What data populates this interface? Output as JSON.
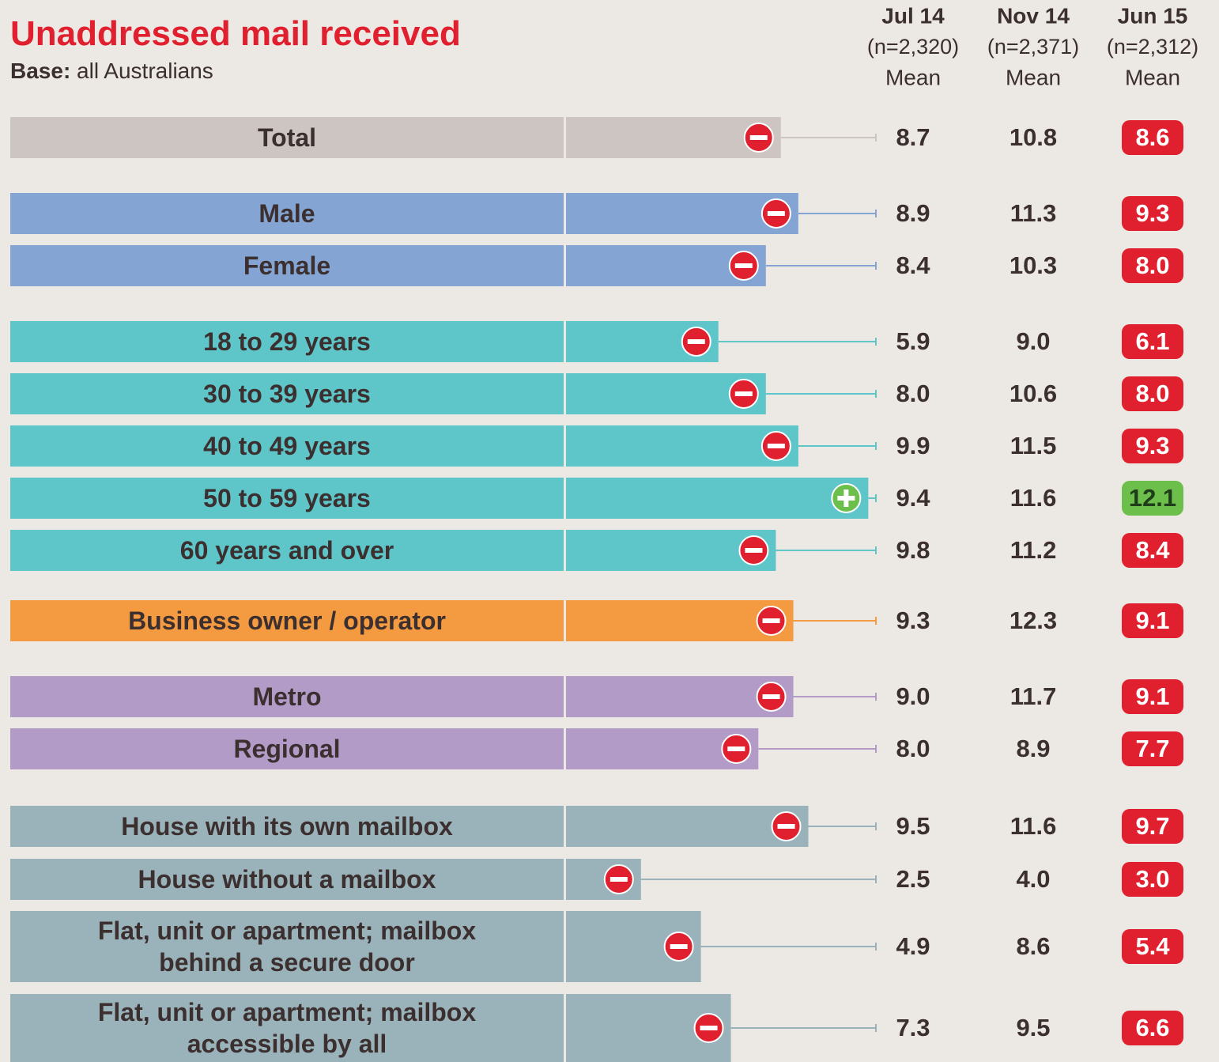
{
  "chart_data": {
    "type": "bar",
    "title": "Unaddressed mail received",
    "subtitle_label": "Base:",
    "subtitle": "all Australians",
    "categories": [
      "Total",
      "Male",
      "Female",
      "18 to 29 years",
      "30 to 39 years",
      "40 to 49 years",
      "50 to 59 years",
      "60 years and over",
      "Business owner / operator",
      "Metro",
      "Regional",
      "House with its own mailbox",
      "House without a mailbox",
      "Flat, unit or apartment; mailbox\nbehind a secure door",
      "Flat, unit or apartment; mailbox\naccessible by all"
    ],
    "category_colors": [
      "#cdc5c2",
      "#84a5d3",
      "#84a5d3",
      "#5ec5c9",
      "#5ec5c9",
      "#5ec5c9",
      "#5ec5c9",
      "#5ec5c9",
      "#f49a40",
      "#b39bc8",
      "#b39bc8",
      "#9ab2b9",
      "#9ab2b9",
      "#9ab2b9",
      "#9ab2b9"
    ],
    "significance": [
      "down",
      "down",
      "down",
      "down",
      "down",
      "down",
      "up",
      "down",
      "down",
      "down",
      "down",
      "down",
      "down",
      "down",
      "down"
    ],
    "significance_colors": {
      "down": "#e0202e",
      "up": "#6cbf4a"
    },
    "series": [
      {
        "name": "Jul 14",
        "sample": "(n=2,320)",
        "stat": "Mean",
        "values": [
          8.7,
          8.9,
          8.4,
          5.9,
          8.0,
          9.9,
          9.4,
          9.8,
          9.3,
          9.0,
          8.0,
          9.5,
          2.5,
          4.9,
          7.3
        ],
        "value_labels": [
          "8.7",
          "8.9",
          "8.4",
          "5.9",
          "8.0",
          "9.9",
          "9.4",
          "9.8",
          "9.3",
          "9.0",
          "8.0",
          "9.5",
          "2.5",
          "4.9",
          "7.3"
        ]
      },
      {
        "name": "Nov 14",
        "sample": "(n=2,371)",
        "stat": "Mean",
        "values": [
          10.8,
          11.3,
          10.3,
          9.0,
          10.6,
          11.5,
          11.6,
          11.2,
          12.3,
          11.7,
          8.9,
          11.6,
          4.0,
          8.6,
          9.5
        ],
        "value_labels": [
          "10.8",
          "11.3",
          "10.3",
          "9.0",
          "10.6",
          "11.5",
          "11.6",
          "11.2",
          "12.3",
          "11.7",
          "8.9",
          "11.6",
          "4.0",
          "8.6",
          "9.5"
        ]
      },
      {
        "name": "Jun 15",
        "sample": "(n=2,312)",
        "stat": "Mean",
        "values": [
          8.6,
          9.3,
          8.0,
          6.1,
          8.0,
          9.3,
          12.1,
          8.4,
          9.1,
          9.1,
          7.7,
          9.7,
          3.0,
          5.4,
          6.6
        ],
        "value_labels": [
          "8.6",
          "9.3",
          "8.0",
          "6.1",
          "8.0",
          "9.3",
          "12.1",
          "8.4",
          "9.1",
          "9.1",
          "7.7",
          "9.7",
          "3.0",
          "5.4",
          "6.6"
        ]
      }
    ],
    "bar_series": 2,
    "xlim": [
      0,
      25
    ]
  }
}
